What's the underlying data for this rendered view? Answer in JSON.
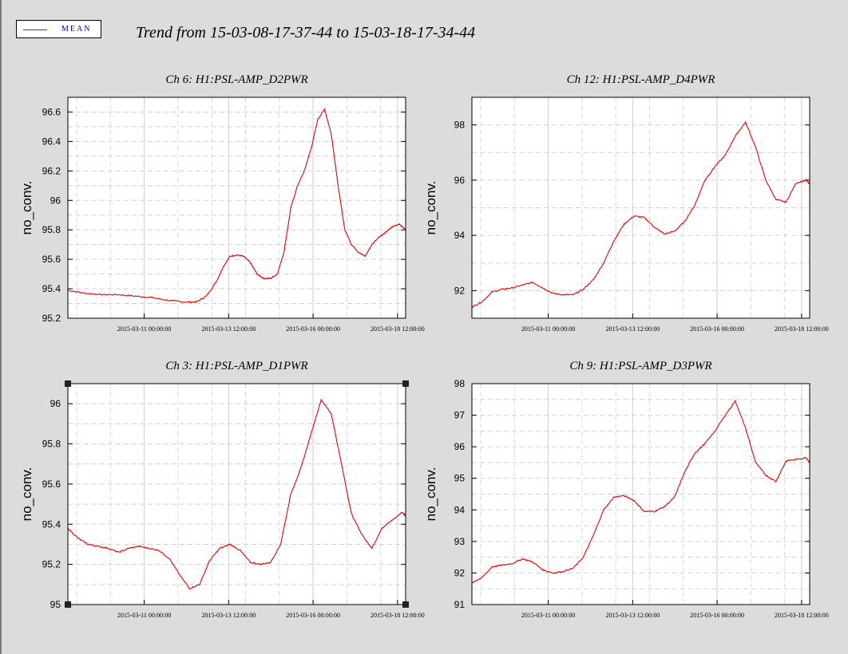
{
  "legend": {
    "label": "MEAN",
    "line_color": "#e00000"
  },
  "title": "Trend from 15-03-08-17-37-44 to 15-03-18-17-34-44",
  "chart_data": [
    {
      "type": "line",
      "title": "Ch 6: H1:PSL-AMP_D2PWR",
      "ylabel": "no_conv.",
      "ylim": [
        95.2,
        96.7
      ],
      "yticks": [
        95.2,
        95.4,
        95.6,
        95.8,
        96,
        96.2,
        96.4,
        96.6
      ],
      "ytick_labels": [
        "95.2",
        "95.4",
        "95.6",
        "95.8",
        "96",
        "96.2",
        "96.4",
        "96.6"
      ],
      "xlim": [
        0,
        10
      ],
      "xticks": [
        2.26,
        4.76,
        7.26,
        9.76
      ],
      "xtick_labels": [
        "2015-03-11 00:00:00",
        "2015-03-13 12:00:00",
        "2015-03-16 00:00:00",
        "2015-03-18 12:00:00"
      ],
      "series": [
        {
          "color": "#e00000",
          "x": [
            0,
            0.5,
            1,
            1.5,
            2,
            2.5,
            3,
            3.5,
            3.8,
            4.1,
            4.4,
            4.6,
            4.8,
            5,
            5.2,
            5.4,
            5.6,
            5.8,
            6,
            6.2,
            6.4,
            6.6,
            6.8,
            7,
            7.2,
            7.4,
            7.6,
            7.8,
            8,
            8.2,
            8.4,
            8.6,
            8.8,
            9,
            9.2,
            9.4,
            9.6,
            9.8,
            10
          ],
          "values": [
            95.39,
            95.37,
            95.36,
            95.36,
            95.35,
            95.34,
            95.32,
            95.31,
            95.31,
            95.35,
            95.45,
            95.55,
            95.62,
            95.63,
            95.62,
            95.58,
            95.5,
            95.47,
            95.47,
            95.5,
            95.65,
            95.95,
            96.1,
            96.2,
            96.35,
            96.55,
            96.62,
            96.45,
            96.1,
            95.8,
            95.7,
            95.65,
            95.62,
            95.7,
            95.75,
            95.78,
            95.82,
            95.84,
            95.8
          ]
        }
      ]
    },
    {
      "type": "line",
      "title": "Ch 12: H1:PSL-AMP_D4PWR",
      "ylabel": "no_conv.",
      "ylim": [
        91,
        99
      ],
      "yticks": [
        92,
        94,
        96,
        98
      ],
      "ytick_labels": [
        "92",
        "94",
        "96",
        "98"
      ],
      "xlim": [
        0,
        10
      ],
      "xticks": [
        2.26,
        4.76,
        7.26,
        9.76
      ],
      "xtick_labels": [
        "2015-03-11 00:00:00",
        "2015-03-13 12:00:00",
        "2015-03-16 00:00:00",
        "2015-03-18 12:00:00"
      ],
      "series": [
        {
          "color": "#e00000",
          "x": [
            0,
            0.3,
            0.6,
            0.9,
            1.2,
            1.5,
            1.8,
            2.1,
            2.4,
            2.7,
            3,
            3.3,
            3.6,
            3.9,
            4.2,
            4.5,
            4.8,
            5.1,
            5.4,
            5.7,
            6,
            6.3,
            6.6,
            6.9,
            7.2,
            7.5,
            7.8,
            8.1,
            8.4,
            8.7,
            9,
            9.3,
            9.6,
            9.9,
            10
          ],
          "values": [
            91.4,
            91.6,
            91.95,
            92.05,
            92.1,
            92.2,
            92.3,
            92.1,
            91.9,
            91.85,
            91.85,
            92.05,
            92.4,
            93.0,
            93.8,
            94.4,
            94.7,
            94.65,
            94.3,
            94.05,
            94.15,
            94.5,
            95.1,
            96.0,
            96.5,
            96.9,
            97.6,
            98.1,
            97.2,
            96.0,
            95.3,
            95.2,
            95.9,
            96.0,
            95.85
          ]
        }
      ]
    },
    {
      "type": "line",
      "title": "Ch 3: H1:PSL-AMP_D1PWR",
      "ylabel": "no_conv.",
      "ylim": [
        95,
        96.1
      ],
      "yticks": [
        95,
        95.2,
        95.4,
        95.6,
        95.8,
        96
      ],
      "ytick_labels": [
        "95",
        "95.2",
        "95.4",
        "95.6",
        "95.8",
        "96"
      ],
      "xlim": [
        0,
        10
      ],
      "xticks": [
        2.26,
        4.76,
        7.26,
        9.76
      ],
      "xtick_labels": [
        "2015-03-11 00:00:00",
        "2015-03-13 12:00:00",
        "2015-03-16 00:00:00",
        "2015-03-18 12:00:00"
      ],
      "series": [
        {
          "color": "#e00000",
          "x": [
            0,
            0.3,
            0.6,
            0.9,
            1.2,
            1.5,
            1.8,
            2.1,
            2.4,
            2.7,
            3,
            3.3,
            3.6,
            3.9,
            4.2,
            4.5,
            4.8,
            5.1,
            5.4,
            5.7,
            6,
            6.3,
            6.6,
            6.9,
            7.2,
            7.5,
            7.8,
            8.1,
            8.4,
            8.7,
            9,
            9.3,
            9.6,
            9.9,
            10
          ],
          "values": [
            95.38,
            95.33,
            95.3,
            95.29,
            95.28,
            95.26,
            95.28,
            95.29,
            95.28,
            95.27,
            95.23,
            95.15,
            95.08,
            95.1,
            95.22,
            95.28,
            95.3,
            95.27,
            95.21,
            95.2,
            95.21,
            95.3,
            95.55,
            95.68,
            95.85,
            96.02,
            95.95,
            95.7,
            95.45,
            95.35,
            95.28,
            95.38,
            95.42,
            95.46,
            95.44
          ]
        }
      ]
    },
    {
      "type": "line",
      "title": "Ch 9: H1:PSL-AMP_D3PWR",
      "ylabel": "no_conv.",
      "ylim": [
        91,
        98
      ],
      "yticks": [
        91,
        92,
        93,
        94,
        95,
        96,
        97,
        98
      ],
      "ytick_labels": [
        "91",
        "92",
        "93",
        "94",
        "95",
        "96",
        "97",
        "98"
      ],
      "xlim": [
        0,
        10
      ],
      "xticks": [
        2.26,
        4.76,
        7.26,
        9.76
      ],
      "xtick_labels": [
        "2015-03-11 00:00:00",
        "2015-03-13 12:00:00",
        "2015-03-16 00:00:00",
        "2015-03-18 12:00:00"
      ],
      "series": [
        {
          "color": "#e00000",
          "x": [
            0,
            0.3,
            0.6,
            0.9,
            1.2,
            1.5,
            1.8,
            2.1,
            2.4,
            2.7,
            3,
            3.3,
            3.6,
            3.9,
            4.2,
            4.5,
            4.8,
            5.1,
            5.4,
            5.7,
            6,
            6.3,
            6.6,
            6.9,
            7.2,
            7.5,
            7.8,
            8.1,
            8.4,
            8.7,
            9,
            9.3,
            9.6,
            9.9,
            10
          ],
          "values": [
            91.7,
            91.85,
            92.2,
            92.25,
            92.3,
            92.45,
            92.35,
            92.1,
            92.0,
            92.05,
            92.15,
            92.5,
            93.2,
            94.0,
            94.4,
            94.45,
            94.3,
            93.95,
            93.95,
            94.1,
            94.4,
            95.2,
            95.8,
            96.1,
            96.5,
            97.0,
            97.45,
            96.6,
            95.5,
            95.1,
            94.9,
            95.55,
            95.6,
            95.65,
            95.5
          ]
        }
      ]
    }
  ]
}
